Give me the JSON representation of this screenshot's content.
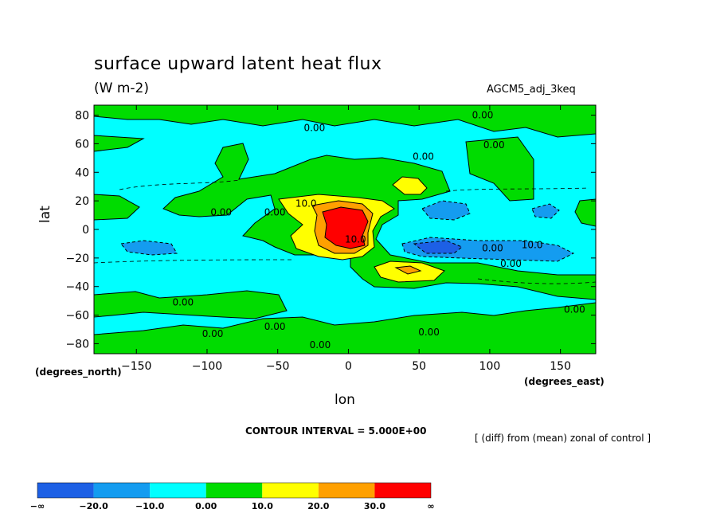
{
  "chart_data": {
    "type": "heatmap",
    "title": "surface upward latent heat flux",
    "units": "(W m-2)",
    "experiment": "AGCM5_adj_3keq",
    "xlabel": "lon",
    "ylabel": "lat",
    "x_units": "(degrees_east)",
    "y_units": "(degrees_north)",
    "xlim": [
      -180,
      175
    ],
    "ylim": [
      -87,
      87
    ],
    "xticks": [
      -150,
      -100,
      -50,
      0,
      50,
      100,
      150
    ],
    "yticks": [
      80,
      60,
      40,
      20,
      0,
      -20,
      -40,
      -60,
      -80
    ],
    "xtick_labels": [
      "−150",
      "−100",
      "−50",
      "0",
      "50",
      "100",
      "150"
    ],
    "ytick_labels": [
      "80",
      "60",
      "40",
      "20",
      "0",
      "−20",
      "−40",
      "−60",
      "−80"
    ],
    "contour_interval": "CONTOUR INTERVAL = 5.000E+00",
    "note": "[ (diff) from (mean) zonal of control ]",
    "background_level": "0 to -10",
    "contour_labels": [
      {
        "text": "0.00",
        "lon": -24,
        "lat": 71
      },
      {
        "text": "0.00",
        "lon": 95,
        "lat": 80
      },
      {
        "text": "0.00",
        "lon": 103,
        "lat": 59
      },
      {
        "text": "0.00",
        "lon": 53,
        "lat": 51
      },
      {
        "text": "0.00",
        "lon": -90,
        "lat": 12
      },
      {
        "text": "0.00",
        "lon": -52,
        "lat": 12
      },
      {
        "text": "10.0",
        "lon": -30,
        "lat": 18
      },
      {
        "text": "10.0",
        "lon": 5,
        "lat": -7
      },
      {
        "text": "0.00",
        "lon": 102,
        "lat": -13
      },
      {
        "text": "10.0",
        "lon": 130,
        "lat": -11
      },
      {
        "text": "0.00",
        "lon": 115,
        "lat": -24
      },
      {
        "text": "0.00",
        "lon": -117,
        "lat": -51
      },
      {
        "text": "0.00",
        "lon": 160,
        "lat": -56
      },
      {
        "text": "0.00",
        "lon": -96,
        "lat": -73
      },
      {
        "text": "0.00",
        "lon": -52,
        "lat": -68
      },
      {
        "text": "0.00",
        "lon": 57,
        "lat": -72
      },
      {
        "text": "0.00",
        "lon": -20,
        "lat": -81
      }
    ],
    "regions": [
      {
        "name": "strong-max-africa",
        "level": "30 to inf",
        "lon": [
          -17,
          17
        ],
        "lat": [
          -13,
          13
        ]
      },
      {
        "name": "max-ring-africa",
        "level": "20 to 30",
        "lon": [
          -22,
          22
        ],
        "lat": [
          -17,
          16
        ]
      },
      {
        "name": "max-northeast",
        "level": "10 to 20",
        "lon": [
          33,
          57
        ],
        "lat": [
          21,
          31
        ]
      },
      {
        "name": "max-southeast",
        "level": "10 to 20",
        "lon": [
          20,
          62
        ],
        "lat": [
          -38,
          -23
        ]
      },
      {
        "name": "min-indian-ocean",
        "level": "-20 to -10",
        "lon": [
          42,
          165
        ],
        "lat": [
          -20,
          -5
        ]
      },
      {
        "name": "min-arabian-sea",
        "level": "-20 to -10",
        "lon": [
          52,
          92
        ],
        "lat": [
          4,
          14
        ]
      }
    ],
    "colorbar": {
      "colors": [
        "#1d60e5",
        "#149cf0",
        "#00ffff",
        "#00dc00",
        "#ffff00",
        "#ffa000",
        "#ff0000"
      ],
      "labels": [
        "−∞",
        "−20.0",
        "−10.0",
        "0.00",
        "10.0",
        "20.0",
        "30.0",
        "∞"
      ]
    }
  }
}
